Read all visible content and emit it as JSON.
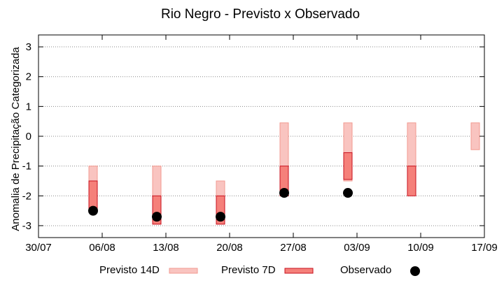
{
  "chart_data": {
    "type": "range-bar",
    "title": "Rio Negro - Previsto x Observado",
    "xlabel": "",
    "ylabel": "Anomalia de Precipitação Categorizada",
    "xlim": [
      "2024-07-30",
      "2024-09-17"
    ],
    "x_tick_labels": [
      "30/07",
      "06/08",
      "13/08",
      "20/08",
      "27/08",
      "03/09",
      "10/09",
      "17/09"
    ],
    "x_tick_dates": [
      "2024-07-30",
      "2024-08-06",
      "2024-08-13",
      "2024-08-20",
      "2024-08-27",
      "2024-09-03",
      "2024-09-10",
      "2024-09-17"
    ],
    "ylim": [
      -3.4,
      3.4
    ],
    "y_ticks": [
      -3,
      -2,
      -1,
      0,
      1,
      2,
      3
    ],
    "grid": "horizontal-dotted",
    "legend_position": "bottom",
    "colors": {
      "previsto_14d_fill": "#f9c4c0",
      "previsto_14d_stroke": "#f29a90",
      "previsto_7d_fill": "#f5807a",
      "previsto_7d_stroke": "#c8101e",
      "observado": "#000000"
    },
    "series": [
      {
        "name": "Previsto 14D",
        "points": [
          {
            "date": "2024-08-05",
            "low": -2.5,
            "high": -1.0
          },
          {
            "date": "2024-08-12",
            "low": -2.95,
            "high": -1.0
          },
          {
            "date": "2024-08-19",
            "low": -2.95,
            "high": -1.5
          },
          {
            "date": "2024-08-26",
            "low": -2.0,
            "high": 0.45
          },
          {
            "date": "2024-09-02",
            "low": -1.5,
            "high": 0.45
          },
          {
            "date": "2024-09-09",
            "low": -1.0,
            "high": 0.45
          },
          {
            "date": "2024-09-16",
            "low": -0.45,
            "high": 0.45
          }
        ]
      },
      {
        "name": "Previsto 7D",
        "points": [
          {
            "date": "2024-08-05",
            "low": -2.5,
            "high": -1.5
          },
          {
            "date": "2024-08-12",
            "low": -2.95,
            "high": -2.0
          },
          {
            "date": "2024-08-19",
            "low": -2.95,
            "high": -2.0
          },
          {
            "date": "2024-08-26",
            "low": -2.0,
            "high": -1.0
          },
          {
            "date": "2024-09-02",
            "low": -1.45,
            "high": -0.55
          },
          {
            "date": "2024-09-09",
            "low": -2.0,
            "high": -1.0
          }
        ]
      },
      {
        "name": "Observado",
        "points": [
          {
            "date": "2024-08-05",
            "value": -2.5
          },
          {
            "date": "2024-08-12",
            "value": -2.7
          },
          {
            "date": "2024-08-19",
            "value": -2.7
          },
          {
            "date": "2024-08-26",
            "value": -1.9
          },
          {
            "date": "2024-09-02",
            "value": -1.9
          }
        ]
      }
    ]
  }
}
